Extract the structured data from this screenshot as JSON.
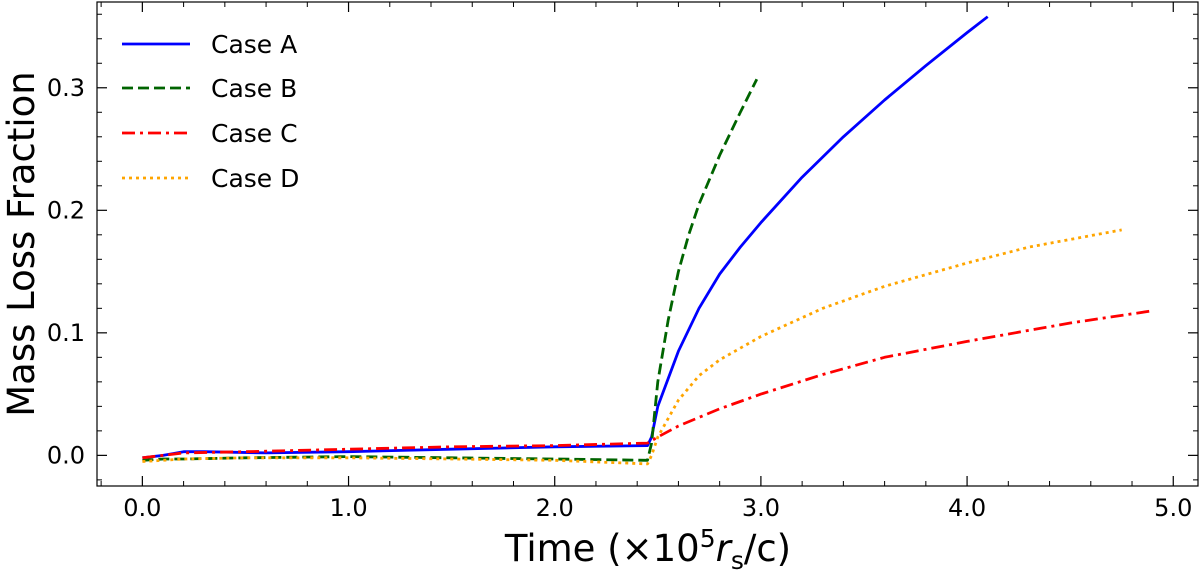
{
  "chart_data": {
    "type": "line",
    "xlabel": "Time (×10",
    "xlabel_sup": "5",
    "xlabel_r": "r",
    "xlabel_sub": "s",
    "xlabel_tail": "/c)",
    "ylabel": "Mass Loss Fraction",
    "xlim": [
      -0.22,
      5.12
    ],
    "ylim": [
      -0.025,
      0.37
    ],
    "x_ticks": [
      0.0,
      1.0,
      2.0,
      3.0,
      4.0,
      5.0
    ],
    "x_tick_labels": [
      "0.0",
      "1.0",
      "2.0",
      "3.0",
      "4.0",
      "5.0"
    ],
    "y_ticks": [
      0.0,
      0.1,
      0.2,
      0.3
    ],
    "y_tick_labels": [
      "0.0",
      "0.1",
      "0.2",
      "0.3"
    ],
    "grid": false,
    "legend_position": "top-left",
    "series": [
      {
        "name": "Case A",
        "color": "#0000ff",
        "style": "solid",
        "x": [
          0.0,
          0.1,
          0.2,
          0.3,
          0.6,
          1.0,
          1.5,
          2.0,
          2.45,
          2.47,
          2.5,
          2.6,
          2.7,
          2.8,
          2.9,
          3.0,
          3.2,
          3.4,
          3.6,
          3.8,
          4.0,
          4.1
        ],
        "y": [
          -0.002,
          0.0,
          0.003,
          0.003,
          0.002,
          0.003,
          0.005,
          0.007,
          0.008,
          0.015,
          0.04,
          0.085,
          0.12,
          0.148,
          0.17,
          0.19,
          0.227,
          0.26,
          0.29,
          0.318,
          0.345,
          0.358
        ]
      },
      {
        "name": "Case B",
        "color": "#006400",
        "style": "dashed",
        "x": [
          0.0,
          0.1,
          0.2,
          0.5,
          1.0,
          1.5,
          2.0,
          2.45,
          2.47,
          2.5,
          2.55,
          2.6,
          2.65,
          2.7,
          2.8,
          2.9,
          2.98
        ],
        "y": [
          -0.004,
          -0.003,
          -0.003,
          -0.002,
          -0.001,
          -0.002,
          -0.003,
          -0.004,
          0.01,
          0.06,
          0.11,
          0.15,
          0.18,
          0.205,
          0.245,
          0.28,
          0.307
        ]
      },
      {
        "name": "Case C",
        "color": "#ff0000",
        "style": "dashdot",
        "x": [
          0.0,
          0.1,
          0.2,
          0.5,
          1.0,
          1.5,
          2.0,
          2.45,
          2.5,
          2.6,
          2.8,
          3.0,
          3.3,
          3.6,
          4.0,
          4.5,
          4.9
        ],
        "y": [
          -0.002,
          0.0,
          0.002,
          0.003,
          0.005,
          0.007,
          0.008,
          0.01,
          0.015,
          0.024,
          0.038,
          0.05,
          0.066,
          0.08,
          0.093,
          0.108,
          0.118
        ]
      },
      {
        "name": "Case D",
        "color": "#ffa500",
        "style": "dotted",
        "x": [
          0.0,
          0.1,
          0.2,
          0.5,
          1.0,
          1.5,
          2.0,
          2.45,
          2.47,
          2.5,
          2.55,
          2.6,
          2.7,
          2.8,
          3.0,
          3.3,
          3.6,
          4.0,
          4.3,
          4.75
        ],
        "y": [
          -0.005,
          -0.004,
          -0.003,
          -0.002,
          -0.002,
          -0.003,
          -0.004,
          -0.007,
          0.0,
          0.015,
          0.03,
          0.045,
          0.065,
          0.078,
          0.097,
          0.12,
          0.138,
          0.157,
          0.17,
          0.184
        ]
      }
    ]
  }
}
